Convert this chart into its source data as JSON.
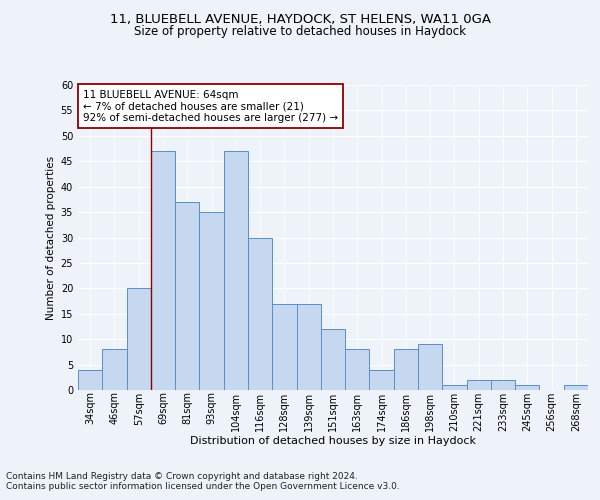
{
  "title1": "11, BLUEBELL AVENUE, HAYDOCK, ST HELENS, WA11 0GA",
  "title2": "Size of property relative to detached houses in Haydock",
  "xlabel": "Distribution of detached houses by size in Haydock",
  "ylabel": "Number of detached properties",
  "categories": [
    "34sqm",
    "46sqm",
    "57sqm",
    "69sqm",
    "81sqm",
    "93sqm",
    "104sqm",
    "116sqm",
    "128sqm",
    "139sqm",
    "151sqm",
    "163sqm",
    "174sqm",
    "186sqm",
    "198sqm",
    "210sqm",
    "221sqm",
    "233sqm",
    "245sqm",
    "256sqm",
    "268sqm"
  ],
  "values": [
    4,
    8,
    20,
    47,
    37,
    35,
    47,
    30,
    17,
    17,
    12,
    8,
    4,
    8,
    9,
    1,
    2,
    2,
    1,
    0,
    1
  ],
  "bar_color": "#c5d8f0",
  "bar_edge_color": "#5a8fc4",
  "annotation_text": "11 BLUEBELL AVENUE: 64sqm\n← 7% of detached houses are smaller (21)\n92% of semi-detached houses are larger (277) →",
  "annotation_box_color": "white",
  "annotation_box_edge_color": "#8b0000",
  "vline_color": "#8b0000",
  "vline_x_index": 2.5,
  "ylim": [
    0,
    60
  ],
  "yticks": [
    0,
    5,
    10,
    15,
    20,
    25,
    30,
    35,
    40,
    45,
    50,
    55,
    60
  ],
  "bg_color": "#eef2f9",
  "footer1": "Contains HM Land Registry data © Crown copyright and database right 2024.",
  "footer2": "Contains public sector information licensed under the Open Government Licence v3.0.",
  "title1_fontsize": 9.5,
  "title2_fontsize": 8.5,
  "xlabel_fontsize": 8,
  "ylabel_fontsize": 7.5,
  "tick_fontsize": 7,
  "annotation_fontsize": 7.5,
  "footer_fontsize": 6.5
}
